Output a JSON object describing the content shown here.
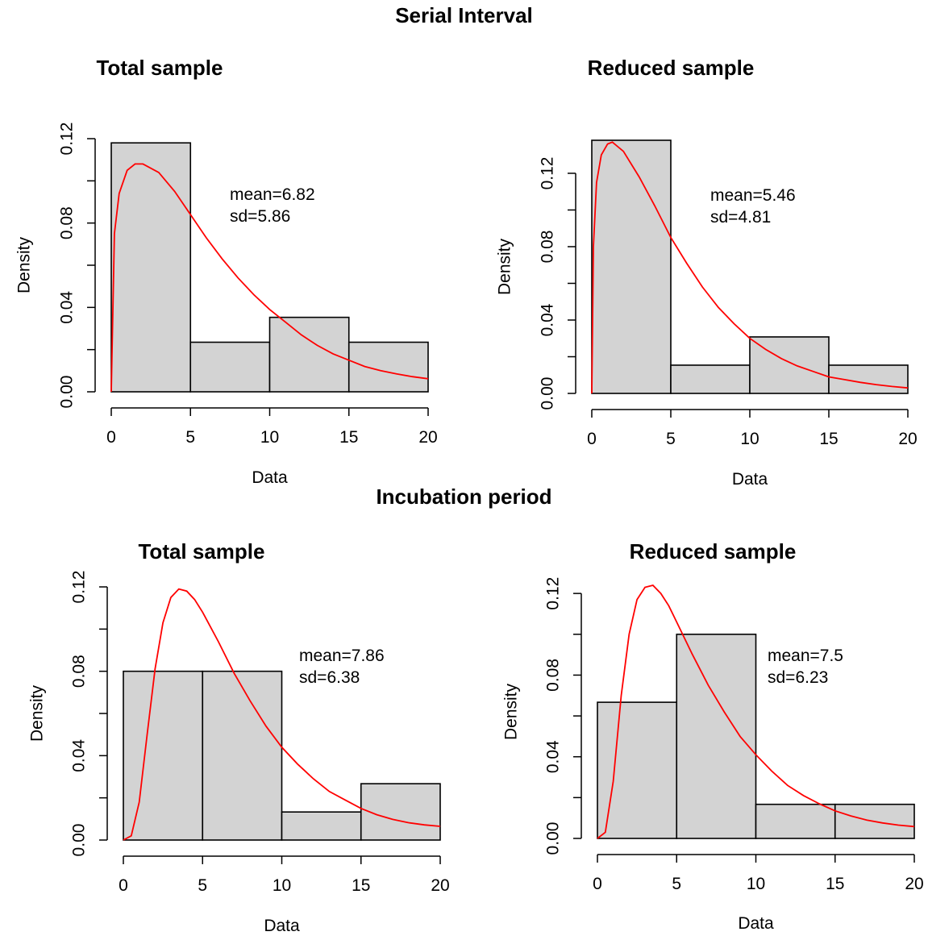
{
  "figure": {
    "section_titles": [
      "Serial Interval",
      "Incubation period"
    ]
  },
  "colors": {
    "bar_fill": "#d3d3d3",
    "bar_stroke": "#000000",
    "curve": "#ff0000"
  },
  "chart_data": [
    {
      "type": "bar",
      "section": "Serial Interval",
      "title": "Total sample",
      "xlabel": "Data",
      "ylabel": "Density",
      "xlim": [
        0,
        20
      ],
      "ylim": [
        0,
        0.12
      ],
      "xticks": [
        0,
        5,
        10,
        15,
        20
      ],
      "xtick_labels": [
        "0",
        "5",
        "10",
        "15",
        "20"
      ],
      "yticks": [
        0,
        0.04,
        0.08,
        0.12
      ],
      "ytick_labels": [
        "0.00",
        "0.04",
        "0.08",
        "0.12"
      ],
      "bins": [
        [
          0,
          5
        ],
        [
          5,
          10
        ],
        [
          10,
          15
        ],
        [
          15,
          20
        ]
      ],
      "values": [
        0.118,
        0.0235,
        0.0353,
        0.0235
      ],
      "curve": {
        "x": [
          0,
          0.2,
          0.5,
          1,
          1.5,
          2,
          3,
          4,
          5,
          6,
          7,
          8,
          9,
          10,
          11,
          12,
          13,
          14,
          15,
          16,
          17,
          18,
          19,
          20
        ],
        "y": [
          0,
          0.075,
          0.094,
          0.105,
          0.108,
          0.108,
          0.104,
          0.095,
          0.084,
          0.073,
          0.063,
          0.054,
          0.046,
          0.039,
          0.033,
          0.027,
          0.022,
          0.018,
          0.015,
          0.012,
          0.01,
          0.0085,
          0.0072,
          0.0062
        ]
      },
      "annotation": [
        "mean=6.82",
        "sd=5.86"
      ]
    },
    {
      "type": "bar",
      "section": "Serial Interval",
      "title": "Reduced sample",
      "xlabel": "Data",
      "ylabel": "Density",
      "xlim": [
        0,
        20
      ],
      "ylim": [
        0,
        0.138
      ],
      "xticks": [
        0,
        5,
        10,
        15,
        20
      ],
      "xtick_labels": [
        "0",
        "5",
        "10",
        "15",
        "20"
      ],
      "yticks": [
        0,
        0.04,
        0.08,
        0.12
      ],
      "ytick_labels": [
        "0.00",
        "0.04",
        "0.08",
        "0.12"
      ],
      "bins": [
        [
          0,
          5
        ],
        [
          5,
          10
        ],
        [
          10,
          15
        ],
        [
          15,
          20
        ]
      ],
      "values": [
        0.138,
        0.0154,
        0.0308,
        0.0154
      ],
      "curve": {
        "x": [
          0,
          0.1,
          0.3,
          0.6,
          1,
          1.3,
          2,
          3,
          4,
          5,
          6,
          7,
          8,
          9,
          10,
          11,
          12,
          13,
          14,
          15,
          16,
          17,
          18,
          19,
          20
        ],
        "y": [
          0,
          0.08,
          0.115,
          0.13,
          0.136,
          0.137,
          0.132,
          0.118,
          0.102,
          0.085,
          0.071,
          0.058,
          0.047,
          0.038,
          0.03,
          0.024,
          0.019,
          0.015,
          0.012,
          0.009,
          0.0075,
          0.006,
          0.0048,
          0.0038,
          0.003
        ]
      },
      "annotation": [
        "mean=5.46",
        "sd=4.81"
      ]
    },
    {
      "type": "bar",
      "section": "Incubation period",
      "title": "Total sample",
      "xlabel": "Data",
      "ylabel": "Density",
      "xlim": [
        0,
        20
      ],
      "ylim": [
        0,
        0.12
      ],
      "xticks": [
        0,
        5,
        10,
        15,
        20
      ],
      "xtick_labels": [
        "0",
        "5",
        "10",
        "15",
        "20"
      ],
      "yticks": [
        0,
        0.04,
        0.08,
        0.12
      ],
      "ytick_labels": [
        "0.00",
        "0.04",
        "0.08",
        "0.12"
      ],
      "bins": [
        [
          0,
          5
        ],
        [
          5,
          10
        ],
        [
          10,
          15
        ],
        [
          15,
          20
        ]
      ],
      "values": [
        0.08,
        0.08,
        0.0133,
        0.0267
      ],
      "curve": {
        "x": [
          0,
          0.5,
          1,
          1.5,
          2,
          2.5,
          3,
          3.5,
          4,
          4.5,
          5,
          6,
          7,
          8,
          9,
          10,
          11,
          12,
          13,
          14,
          15,
          16,
          17,
          18,
          19,
          20
        ],
        "y": [
          0,
          0.002,
          0.018,
          0.05,
          0.081,
          0.103,
          0.115,
          0.119,
          0.118,
          0.114,
          0.108,
          0.094,
          0.079,
          0.066,
          0.054,
          0.044,
          0.036,
          0.029,
          0.023,
          0.019,
          0.015,
          0.012,
          0.0098,
          0.0082,
          0.0072,
          0.0065
        ]
      },
      "annotation": [
        "mean=7.86",
        "sd=6.38"
      ]
    },
    {
      "type": "bar",
      "section": "Incubation period",
      "title": "Reduced sample",
      "xlabel": "Data",
      "ylabel": "Density",
      "xlim": [
        0,
        20
      ],
      "ylim": [
        0,
        0.124
      ],
      "xticks": [
        0,
        5,
        10,
        15,
        20
      ],
      "xtick_labels": [
        "0",
        "5",
        "10",
        "15",
        "20"
      ],
      "yticks": [
        0,
        0.04,
        0.08,
        0.12
      ],
      "ytick_labels": [
        "0.00",
        "0.04",
        "0.08",
        "0.12"
      ],
      "bins": [
        [
          0,
          5
        ],
        [
          5,
          10
        ],
        [
          10,
          15
        ],
        [
          15,
          20
        ]
      ],
      "values": [
        0.0667,
        0.1,
        0.0167,
        0.0167
      ],
      "curve": {
        "x": [
          0,
          0.5,
          1,
          1.5,
          2,
          2.5,
          3,
          3.5,
          4,
          4.5,
          5,
          6,
          7,
          8,
          9,
          10,
          11,
          12,
          13,
          14,
          15,
          16,
          17,
          18,
          19,
          20
        ],
        "y": [
          0,
          0.003,
          0.028,
          0.07,
          0.1,
          0.117,
          0.123,
          0.124,
          0.12,
          0.114,
          0.106,
          0.09,
          0.075,
          0.062,
          0.05,
          0.041,
          0.033,
          0.026,
          0.021,
          0.017,
          0.0135,
          0.011,
          0.009,
          0.0076,
          0.0065,
          0.0058
        ]
      },
      "annotation": [
        "mean=7.5",
        "sd=6.23"
      ]
    }
  ]
}
